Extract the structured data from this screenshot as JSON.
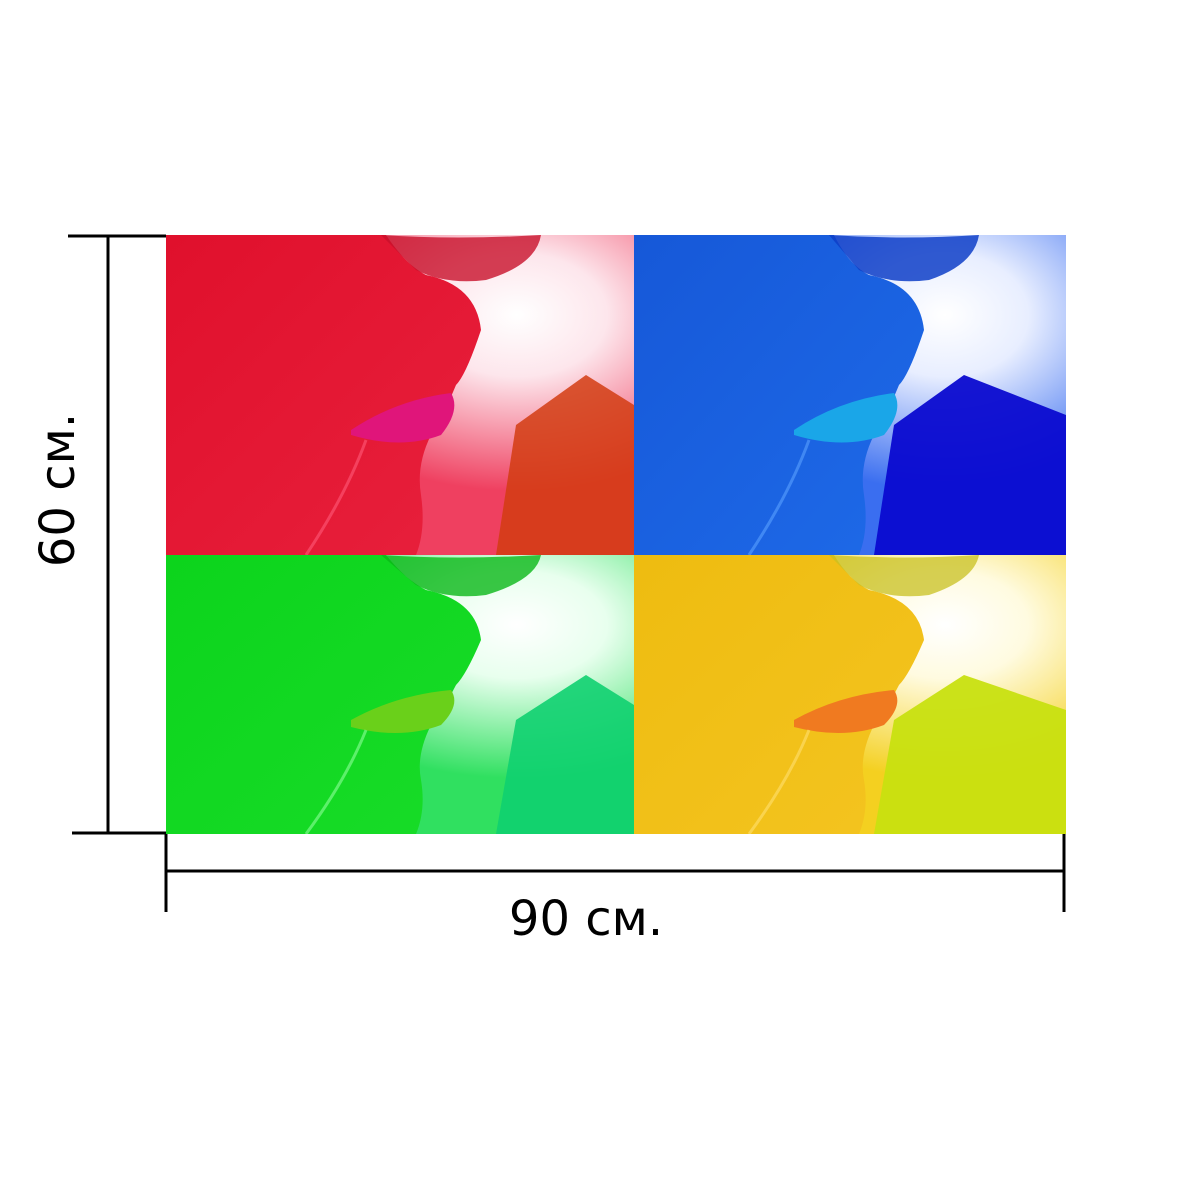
{
  "dimensions": {
    "width_label": "90 см.",
    "height_label": "60 см."
  },
  "panels": [
    {
      "name": "red",
      "base": "#e8102e",
      "lip": "#e0157a",
      "light": "#fff2f5",
      "shadow": "#d63a10"
    },
    {
      "name": "blue",
      "base": "#1a5fe0",
      "lip": "#1aa6e8",
      "light": "#f2f6ff",
      "shadow": "#0a10d0"
    },
    {
      "name": "green",
      "base": "#10d820",
      "lip": "#6ad01a",
      "light": "#f0fff2",
      "shadow": "#10d070"
    },
    {
      "name": "yellow",
      "base": "#f0bf10",
      "lip": "#f07a20",
      "light": "#fffbe8",
      "shadow": "#c8e010"
    }
  ]
}
